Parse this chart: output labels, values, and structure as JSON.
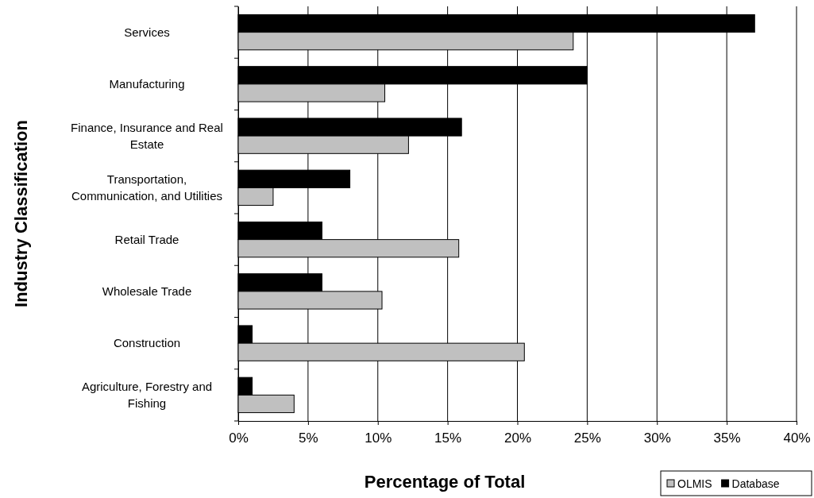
{
  "chart_data": {
    "type": "bar",
    "orientation": "horizontal",
    "xlabel": "Percentage of Total",
    "ylabel": "Industry Classification",
    "categories": [
      "Services",
      "Manufacturing",
      "Finance, Insurance and Real Estate",
      "Transportation, Communication, and Utilities",
      "Retail Trade",
      "Wholesale Trade",
      "Construction",
      "Agriculture, Forestry and Fishing"
    ],
    "series": [
      {
        "name": "Database",
        "color": "#000000",
        "values": [
          37,
          25,
          16,
          8,
          6,
          6,
          1,
          1
        ]
      },
      {
        "name": "OLMIS",
        "color": "#c0c0c0",
        "values": [
          24,
          10.5,
          12.2,
          2.5,
          15.8,
          10.3,
          20.5,
          4
        ]
      }
    ],
    "xlim": [
      0,
      40
    ],
    "xticks": [
      {
        "value": 0,
        "label": "0%"
      },
      {
        "value": 5,
        "label": "5%"
      },
      {
        "value": 10,
        "label": "10%"
      },
      {
        "value": 15,
        "label": "15%"
      },
      {
        "value": 20,
        "label": "20%"
      },
      {
        "value": 25,
        "label": "25%"
      },
      {
        "value": 30,
        "label": "30%"
      },
      {
        "value": 35,
        "label": "35%"
      },
      {
        "value": 40,
        "label": "40%"
      }
    ],
    "grid": "x",
    "legend": "bottom right"
  }
}
